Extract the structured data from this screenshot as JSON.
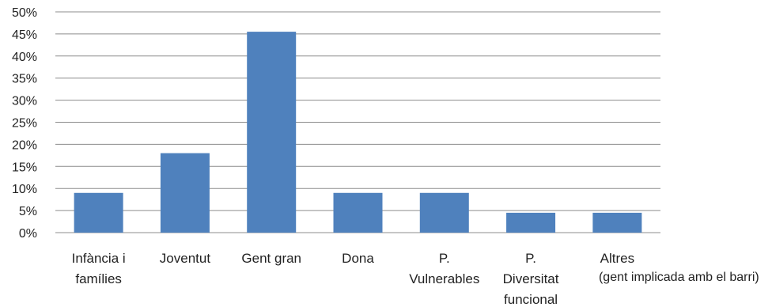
{
  "chart_data": {
    "type": "bar",
    "categories": [
      [
        "Infància i",
        "famílies"
      ],
      [
        "Joventut"
      ],
      [
        "Gent gran"
      ],
      [
        "Dona"
      ],
      [
        "P.",
        "Vulnerables"
      ],
      [
        "P.",
        "Diversitat",
        "funcional"
      ],
      [
        "Altres"
      ]
    ],
    "category_note": "(gent implicada amb el barri)",
    "values": [
      9,
      18,
      45.5,
      9,
      9,
      4.5,
      4.5
    ],
    "y_ticks": [
      "0%",
      "5%",
      "10%",
      "15%",
      "20%",
      "25%",
      "30%",
      "35%",
      "40%",
      "45%",
      "50%"
    ],
    "ylim": [
      0,
      50
    ],
    "bar_color": "#4f81bd",
    "grid": true,
    "grid_color": "#8c8c8c",
    "title": "",
    "xlabel": "",
    "ylabel": ""
  }
}
